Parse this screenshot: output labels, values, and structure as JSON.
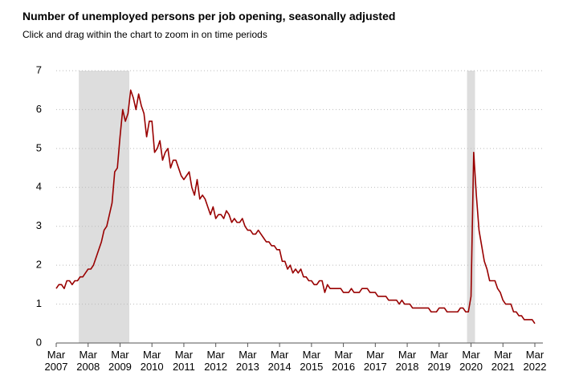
{
  "chart_data": {
    "type": "line",
    "title": "Number of unemployed persons per job opening, seasonally adjusted",
    "subtitle": "Click and drag within the chart to zoom in on time periods",
    "x": [
      "2007-03",
      "2007-04",
      "2007-05",
      "2007-06",
      "2007-07",
      "2007-08",
      "2007-09",
      "2007-10",
      "2007-11",
      "2007-12",
      "2008-01",
      "2008-02",
      "2008-03",
      "2008-04",
      "2008-05",
      "2008-06",
      "2008-07",
      "2008-08",
      "2008-09",
      "2008-10",
      "2008-11",
      "2008-12",
      "2009-01",
      "2009-02",
      "2009-03",
      "2009-04",
      "2009-05",
      "2009-06",
      "2009-07",
      "2009-08",
      "2009-09",
      "2009-10",
      "2009-11",
      "2009-12",
      "2010-01",
      "2010-02",
      "2010-03",
      "2010-04",
      "2010-05",
      "2010-06",
      "2010-07",
      "2010-08",
      "2010-09",
      "2010-10",
      "2010-11",
      "2010-12",
      "2011-01",
      "2011-02",
      "2011-03",
      "2011-04",
      "2011-05",
      "2011-06",
      "2011-07",
      "2011-08",
      "2011-09",
      "2011-10",
      "2011-11",
      "2011-12",
      "2012-01",
      "2012-02",
      "2012-03",
      "2012-04",
      "2012-05",
      "2012-06",
      "2012-07",
      "2012-08",
      "2012-09",
      "2012-10",
      "2012-11",
      "2012-12",
      "2013-01",
      "2013-02",
      "2013-03",
      "2013-04",
      "2013-05",
      "2013-06",
      "2013-07",
      "2013-08",
      "2013-09",
      "2013-10",
      "2013-11",
      "2013-12",
      "2014-01",
      "2014-02",
      "2014-03",
      "2014-04",
      "2014-05",
      "2014-06",
      "2014-07",
      "2014-08",
      "2014-09",
      "2014-10",
      "2014-11",
      "2014-12",
      "2015-01",
      "2015-02",
      "2015-03",
      "2015-04",
      "2015-05",
      "2015-06",
      "2015-07",
      "2015-08",
      "2015-09",
      "2015-10",
      "2015-11",
      "2015-12",
      "2016-01",
      "2016-02",
      "2016-03",
      "2016-04",
      "2016-05",
      "2016-06",
      "2016-07",
      "2016-08",
      "2016-09",
      "2016-10",
      "2016-11",
      "2016-12",
      "2017-01",
      "2017-02",
      "2017-03",
      "2017-04",
      "2017-05",
      "2017-06",
      "2017-07",
      "2017-08",
      "2017-09",
      "2017-10",
      "2017-11",
      "2017-12",
      "2018-01",
      "2018-02",
      "2018-03",
      "2018-04",
      "2018-05",
      "2018-06",
      "2018-07",
      "2018-08",
      "2018-09",
      "2018-10",
      "2018-11",
      "2018-12",
      "2019-01",
      "2019-02",
      "2019-03",
      "2019-04",
      "2019-05",
      "2019-06",
      "2019-07",
      "2019-08",
      "2019-09",
      "2019-10",
      "2019-11",
      "2019-12",
      "2020-01",
      "2020-02",
      "2020-03",
      "2020-04",
      "2020-05",
      "2020-06",
      "2020-07",
      "2020-08",
      "2020-09",
      "2020-10",
      "2020-11",
      "2020-12",
      "2021-01",
      "2021-02",
      "2021-03",
      "2021-04",
      "2021-05",
      "2021-06",
      "2021-07",
      "2021-08",
      "2021-09",
      "2021-10",
      "2021-11",
      "2021-12",
      "2022-01",
      "2022-02",
      "2022-03"
    ],
    "series": [
      {
        "color": "#990000",
        "values": [
          1.4,
          1.5,
          1.5,
          1.4,
          1.6,
          1.6,
          1.5,
          1.6,
          1.6,
          1.7,
          1.7,
          1.8,
          1.9,
          1.9,
          2.0,
          2.2,
          2.4,
          2.6,
          2.9,
          3.0,
          3.3,
          3.6,
          4.4,
          4.5,
          5.3,
          6.0,
          5.7,
          5.9,
          6.5,
          6.3,
          6.0,
          6.4,
          6.1,
          5.9,
          5.3,
          5.7,
          5.7,
          4.9,
          5.0,
          5.2,
          4.7,
          4.9,
          5.0,
          4.5,
          4.7,
          4.7,
          4.5,
          4.3,
          4.2,
          4.3,
          4.4,
          4.0,
          3.8,
          4.2,
          3.7,
          3.8,
          3.7,
          3.5,
          3.3,
          3.5,
          3.2,
          3.3,
          3.3,
          3.2,
          3.4,
          3.3,
          3.1,
          3.2,
          3.1,
          3.1,
          3.2,
          3.0,
          2.9,
          2.9,
          2.8,
          2.8,
          2.9,
          2.8,
          2.7,
          2.6,
          2.6,
          2.5,
          2.5,
          2.4,
          2.4,
          2.1,
          2.1,
          1.9,
          2.0,
          1.8,
          1.9,
          1.8,
          1.9,
          1.7,
          1.7,
          1.6,
          1.6,
          1.5,
          1.5,
          1.6,
          1.6,
          1.3,
          1.5,
          1.4,
          1.4,
          1.4,
          1.4,
          1.4,
          1.3,
          1.3,
          1.3,
          1.4,
          1.3,
          1.3,
          1.3,
          1.4,
          1.4,
          1.4,
          1.3,
          1.3,
          1.3,
          1.2,
          1.2,
          1.2,
          1.2,
          1.1,
          1.1,
          1.1,
          1.1,
          1.0,
          1.1,
          1.0,
          1.0,
          1.0,
          0.9,
          0.9,
          0.9,
          0.9,
          0.9,
          0.9,
          0.9,
          0.8,
          0.8,
          0.8,
          0.9,
          0.9,
          0.9,
          0.8,
          0.8,
          0.8,
          0.8,
          0.8,
          0.9,
          0.9,
          0.8,
          0.8,
          1.2,
          4.9,
          3.8,
          2.9,
          2.5,
          2.1,
          1.9,
          1.6,
          1.6,
          1.6,
          1.4,
          1.3,
          1.1,
          1.0,
          1.0,
          1.0,
          0.8,
          0.8,
          0.7,
          0.7,
          0.6,
          0.6,
          0.6,
          0.6,
          0.5
        ]
      }
    ],
    "shaded_periods": [
      {
        "start": "2007-12",
        "end": "2009-06"
      },
      {
        "start": "2020-02",
        "end": "2020-04"
      }
    ],
    "shade_color": "#dddddd",
    "xlim": [
      "2007-03",
      "2022-03"
    ],
    "xticks": [
      {
        "value": "2007-03",
        "label": "Mar 2007"
      },
      {
        "value": "2008-03",
        "label": "Mar 2008"
      },
      {
        "value": "2009-03",
        "label": "Mar 2009"
      },
      {
        "value": "2010-03",
        "label": "Mar 2010"
      },
      {
        "value": "2011-03",
        "label": "Mar 2011"
      },
      {
        "value": "2012-03",
        "label": "Mar 2012"
      },
      {
        "value": "2013-03",
        "label": "Mar 2013"
      },
      {
        "value": "2014-03",
        "label": "Mar 2014"
      },
      {
        "value": "2015-03",
        "label": "Mar 2015"
      },
      {
        "value": "2016-03",
        "label": "Mar 2016"
      },
      {
        "value": "2017-03",
        "label": "Mar 2017"
      },
      {
        "value": "2018-03",
        "label": "Mar 2018"
      },
      {
        "value": "2019-03",
        "label": "Mar 2019"
      },
      {
        "value": "2020-03",
        "label": "Mar 2020"
      },
      {
        "value": "2021-03",
        "label": "Mar 2021"
      },
      {
        "value": "2022-03",
        "label": "Mar 2022"
      }
    ],
    "ylim": [
      0,
      7
    ],
    "yticks": [
      0,
      1,
      2,
      3,
      4,
      5,
      6,
      7
    ],
    "grid": true
  }
}
